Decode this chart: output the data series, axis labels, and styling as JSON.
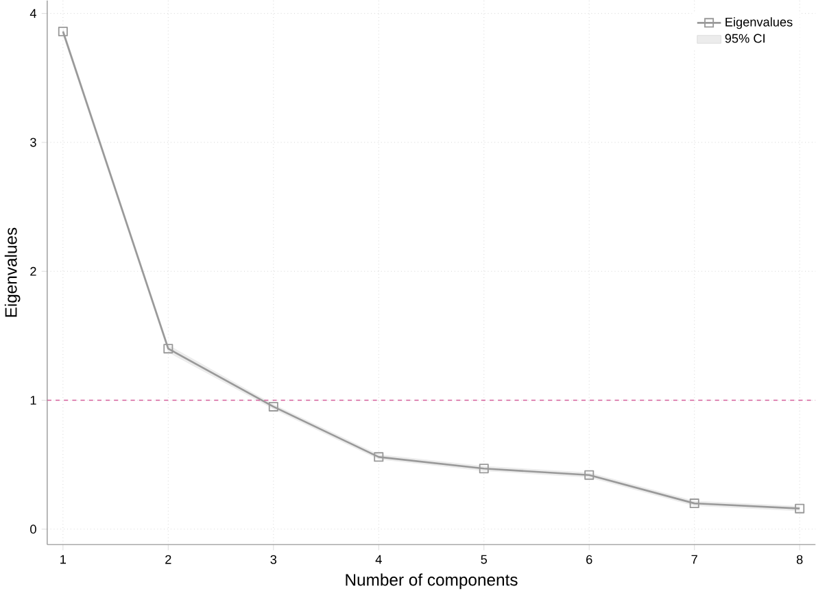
{
  "chart_data": {
    "type": "line",
    "xlabel": "Number of components",
    "ylabel": "Eigenvalues",
    "x": [
      1,
      2,
      3,
      4,
      5,
      6,
      7,
      8
    ],
    "series": [
      {
        "name": "Eigenvalues",
        "color": "#999999",
        "values": [
          3.86,
          1.4,
          0.95,
          0.56,
          0.47,
          0.42,
          0.2,
          0.16
        ],
        "lower": [
          3.83,
          1.37,
          0.93,
          0.54,
          0.45,
          0.4,
          0.18,
          0.14
        ],
        "upper": [
          3.89,
          1.43,
          0.97,
          0.58,
          0.49,
          0.44,
          0.22,
          0.18
        ]
      }
    ],
    "annotations": [
      "95% CI"
    ],
    "xlim": [
      0.85,
      8.15
    ],
    "ylim": [
      -0.12,
      4.1
    ],
    "xticks": [
      1,
      2,
      3,
      4,
      5,
      6,
      7,
      8
    ],
    "yticks": [
      0,
      1,
      2,
      3,
      4
    ],
    "ref_lines": [
      {
        "axis": "y",
        "value": 1,
        "color": "#d45d9a",
        "line_style": "dashed"
      }
    ],
    "grid": true,
    "legend": "top right",
    "marker": "square",
    "line_style": "solid"
  }
}
